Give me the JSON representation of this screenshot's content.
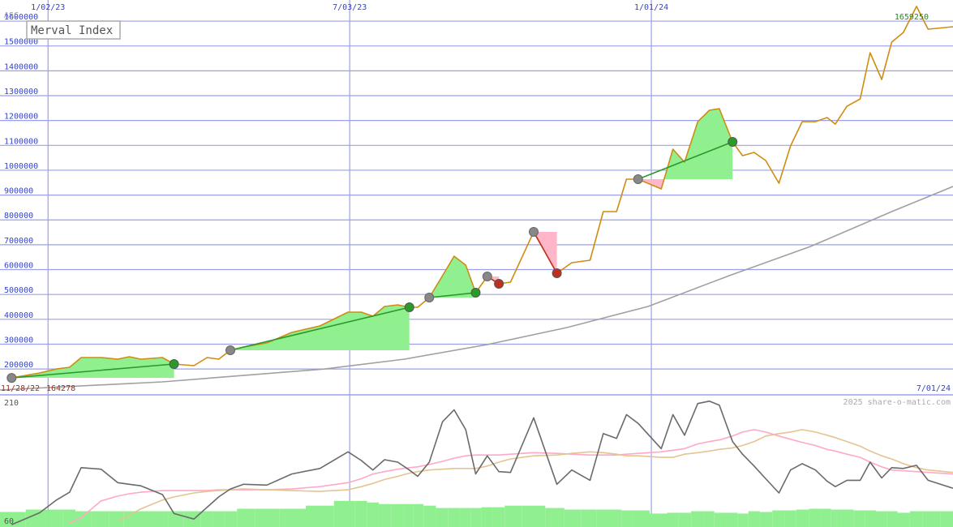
{
  "chart_data": [
    {
      "type": "line",
      "title": "Merval Index",
      "scale_label": "ASC",
      "x": [
        "2022-12-11",
        "2022-12-28",
        "2023-01-07",
        "2023-01-15",
        "2023-01-22",
        "2023-02-03",
        "2023-02-13",
        "2023-02-20",
        "2023-02-27",
        "2023-03-12",
        "2023-03-19",
        "2023-03-31",
        "2023-04-08",
        "2023-04-15",
        "2023-04-22",
        "2023-04-30",
        "2023-05-14",
        "2023-05-29",
        "2023-06-15",
        "2023-07-02",
        "2023-07-10",
        "2023-07-17",
        "2023-07-24",
        "2023-08-01",
        "2023-08-08",
        "2023-08-13",
        "2023-08-20",
        "2023-08-28",
        "2023-09-04",
        "2023-09-11",
        "2023-09-17",
        "2023-09-24",
        "2023-10-01",
        "2023-10-08",
        "2023-10-22",
        "2023-11-05",
        "2023-11-14",
        "2023-11-25",
        "2023-12-03",
        "2023-12-11",
        "2023-12-17",
        "2023-12-24",
        "2024-01-07",
        "2024-01-14",
        "2024-01-21",
        "2024-01-29",
        "2024-02-05",
        "2024-02-11",
        "2024-02-19",
        "2024-02-25",
        "2024-03-03",
        "2024-03-10",
        "2024-03-18",
        "2024-03-25",
        "2024-04-01",
        "2024-04-09",
        "2024-04-16",
        "2024-04-21",
        "2024-04-28",
        "2024-05-06",
        "2024-05-12",
        "2024-05-19",
        "2024-05-25",
        "2024-06-01",
        "2024-06-09",
        "2024-06-16",
        "2024-07-01"
      ],
      "xlim": [
        "2022-12-04",
        "2024-07-01"
      ],
      "xticks": [
        {
          "value": "2023-01-02",
          "label": "1/02/23"
        },
        {
          "value": "2023-07-03",
          "label": "7/03/23"
        },
        {
          "value": "2024-01-01",
          "label": "1/01/24"
        }
      ],
      "ylim": [
        96000,
        1685000
      ],
      "yticks": [
        200000,
        300000,
        400000,
        500000,
        600000,
        700000,
        800000,
        900000,
        1000000,
        1100000,
        1200000,
        1300000,
        1400000,
        1500000,
        1600000
      ],
      "grid": true,
      "grid_color": "#9aa0ee",
      "tick_color": "#3344cc",
      "series": [
        {
          "color": "#d08c10",
          "values": [
            164278,
            184000,
            200000,
            207000,
            246000,
            246000,
            239500,
            249300,
            239500,
            246000,
            220000,
            213400,
            246000,
            239500,
            275400,
            288400,
            304700,
            347200,
            373300,
            428700,
            428700,
            412400,
            451600,
            458100,
            448300,
            448300,
            487500,
            575600,
            653800,
            618000,
            507000,
            572300,
            542900,
            549400,
            751700,
            585300,
            627700,
            637500,
            833300,
            833300,
            963800,
            963800,
            924600,
            1084500,
            1032300,
            1195400,
            1241100,
            1247600,
            1113900,
            1058400,
            1071500,
            1038800,
            947500,
            1097600,
            1195400,
            1195400,
            1211800,
            1185600,
            1257400,
            1286800,
            1472800,
            1365100,
            1515200,
            1554300,
            1659250,
            1567400,
            1577200
          ]
        },
        {
          "color": "#a0a0a0",
          "x": [
            "2022-12-04",
            "2023-03-12",
            "2023-06-18",
            "2023-08-05",
            "2023-09-24",
            "2023-11-11",
            "2023-12-30",
            "2024-02-17",
            "2024-04-06",
            "2024-05-25",
            "2024-07-01"
          ],
          "values": [
            115500,
            148100,
            200000,
            239500,
            298200,
            366700,
            451600,
            575600,
            693000,
            833300,
            934400
          ]
        }
      ],
      "trades": [
        {
          "entry": "2022-12-11",
          "exit": "2023-03-19",
          "color": "#2a9a2a"
        },
        {
          "entry": "2023-04-22",
          "exit": "2023-08-08",
          "color": "#2a9a2a"
        },
        {
          "entry": "2023-08-20",
          "exit": "2023-09-17",
          "color": "#2a9a2a"
        },
        {
          "entry": "2023-09-24",
          "exit": "2023-10-01",
          "color": "#c03020"
        },
        {
          "entry": "2023-10-22",
          "exit": "2023-11-05",
          "color": "#c03020"
        },
        {
          "entry": "2023-12-24",
          "exit": "2024-02-19",
          "color": "#2a9a2a"
        }
      ],
      "entry_color": "#888888",
      "gain_fill": "#90f090",
      "loss_fill": "#ffb6c8",
      "start_date": "11/28/22",
      "start_value": 164278,
      "end_date": "7/01/24",
      "max_value": 1659250,
      "credit": "2025 share-o-matic.com"
    },
    {
      "type": "line",
      "x": [
        "2022-12-11",
        "2022-12-28",
        "2023-01-07",
        "2023-01-15",
        "2023-01-22",
        "2023-02-03",
        "2023-02-13",
        "2023-02-20",
        "2023-02-27",
        "2023-03-12",
        "2023-03-19",
        "2023-03-31",
        "2023-04-08",
        "2023-04-15",
        "2023-04-22",
        "2023-04-30",
        "2023-05-14",
        "2023-05-29",
        "2023-06-15",
        "2023-07-02",
        "2023-07-10",
        "2023-07-17",
        "2023-07-24",
        "2023-08-01",
        "2023-08-08",
        "2023-08-13",
        "2023-08-20",
        "2023-08-28",
        "2023-09-04",
        "2023-09-11",
        "2023-09-17",
        "2023-09-24",
        "2023-10-01",
        "2023-10-08",
        "2023-10-22",
        "2023-11-05",
        "2023-11-14",
        "2023-11-25",
        "2023-12-03",
        "2023-12-11",
        "2023-12-17",
        "2023-12-24",
        "2024-01-07",
        "2024-01-14",
        "2024-01-21",
        "2024-01-29",
        "2024-02-05",
        "2024-02-11",
        "2024-02-19",
        "2024-02-25",
        "2024-03-03",
        "2024-03-10",
        "2024-03-18",
        "2024-03-25",
        "2024-04-01",
        "2024-04-09",
        "2024-04-16",
        "2024-04-21",
        "2024-04-28",
        "2024-05-06",
        "2024-05-12",
        "2024-05-19",
        "2024-05-25",
        "2024-06-01",
        "2024-06-09",
        "2024-06-16",
        "2024-07-01"
      ],
      "xlim": [
        "2022-12-04",
        "2024-07-01"
      ],
      "ylim": [
        53,
        220
      ],
      "yticks": [
        60,
        210
      ],
      "bars": {
        "color": "#90f090",
        "values": [
          72,
          75,
          75,
          75,
          73,
          73,
          73,
          73,
          73,
          73,
          73,
          73,
          73,
          73,
          73,
          76,
          76,
          76,
          80,
          86,
          86,
          84,
          82,
          82,
          82,
          82,
          80,
          77,
          77,
          77,
          77,
          78,
          78,
          80,
          80,
          77,
          75,
          75,
          75,
          75,
          74,
          74,
          70,
          71,
          71,
          73,
          73,
          71,
          71,
          70,
          73,
          72,
          74,
          74,
          75,
          76,
          76,
          75,
          75,
          74,
          74,
          73,
          73,
          71,
          73,
          73,
          73
        ]
      },
      "series": [
        {
          "color": "#ffa8c8",
          "values": [
            null,
            null,
            null,
            58,
            65,
            86,
            92,
            95,
            97,
            99,
            99,
            99,
            99,
            100,
            100,
            100,
            100,
            101,
            104,
            109,
            114,
            120,
            123,
            126,
            128,
            129,
            132,
            136,
            140,
            143,
            144,
            144,
            144,
            145,
            147,
            146,
            145,
            144,
            144,
            144,
            145,
            146,
            148,
            150,
            152,
            158,
            161,
            163,
            168,
            173,
            176,
            173,
            168,
            164,
            160,
            156,
            151,
            149,
            145,
            141,
            135,
            129,
            125,
            124,
            123,
            122,
            120
          ]
        },
        {
          "color": "#e4c490",
          "values": [
            null,
            null,
            null,
            null,
            null,
            null,
            61,
            68,
            76,
            87,
            91,
            96,
            98,
            99,
            100,
            101,
            100,
            99,
            98,
            100,
            104,
            108,
            113,
            117,
            121,
            123,
            125,
            126,
            127,
            127,
            127,
            130,
            135,
            139,
            143,
            144,
            146,
            148,
            147,
            145,
            143,
            143,
            141,
            141,
            145,
            147,
            149,
            151,
            153,
            156,
            161,
            168,
            171,
            173,
            176,
            173,
            169,
            166,
            161,
            155,
            149,
            143,
            139,
            133,
            128,
            125,
            122
          ]
        },
        {
          "color": "#6a6a6a",
          "values": [
            56,
            71,
            87,
            97,
            128,
            126,
            109,
            107,
            105,
            94,
            70,
            63,
            78,
            91,
            101,
            107,
            106,
            120,
            127,
            148,
            137,
            125,
            138,
            135,
            125,
            117,
            135,
            186,
            201,
            176,
            120,
            143,
            123,
            122,
            191,
            107,
            125,
            112,
            171,
            165,
            195,
            184,
            152,
            195,
            169,
            209,
            212,
            207,
            161,
            145,
            130,
            114,
            96,
            125,
            133,
            125,
            111,
            104,
            112,
            112,
            135,
            115,
            128,
            127,
            131,
            112,
            102
          ]
        }
      ]
    }
  ]
}
